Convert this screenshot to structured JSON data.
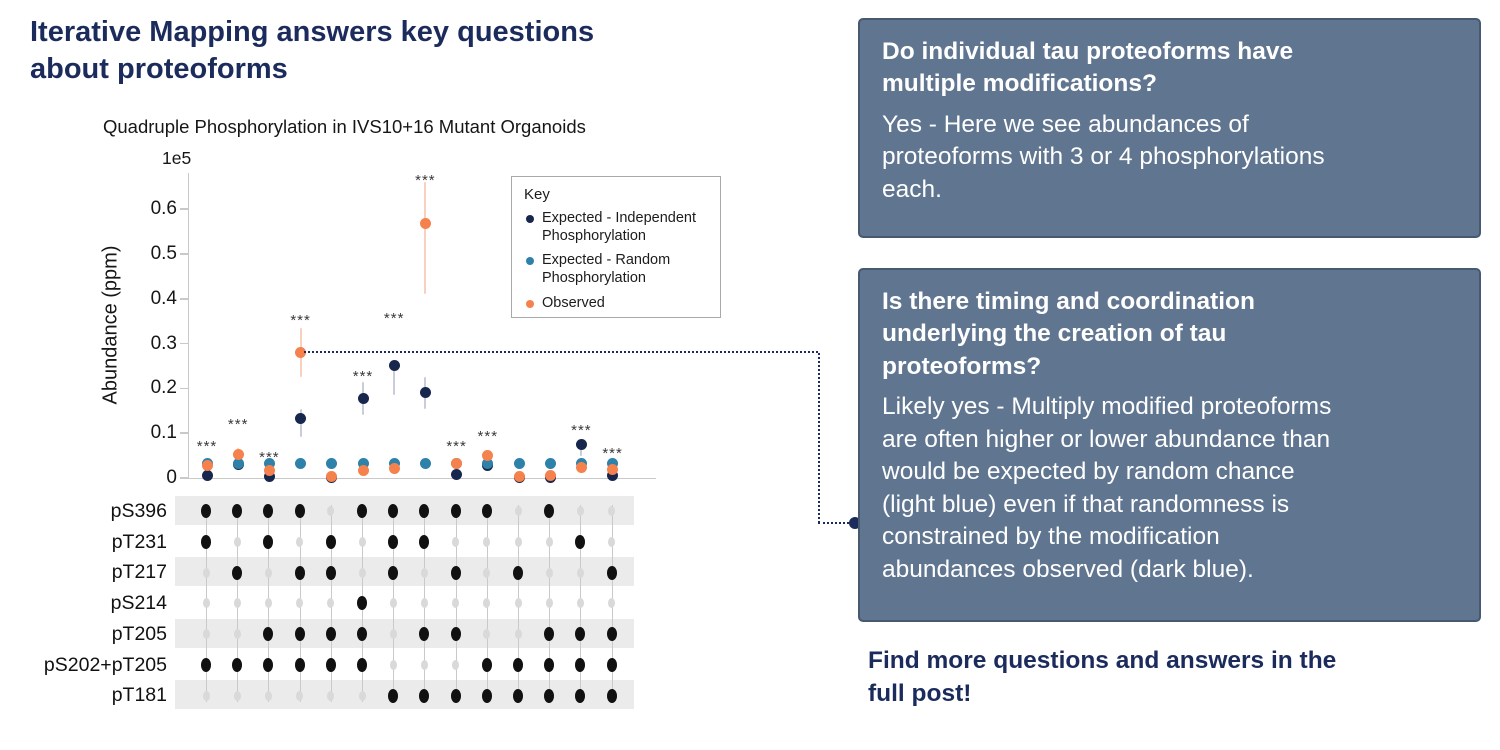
{
  "title": "Iterative Mapping answers key questions\nabout proteoforms",
  "chart_data": {
    "type": "scatter",
    "title": "Quadruple Phosphorylation in IVS10+16 Mutant Organoids",
    "xlabel": "",
    "ylabel": "Abundance (ppm)",
    "y_multiplier": "1e5",
    "ylim": [
      0,
      0.68
    ],
    "yticks": [
      "0",
      "0.1",
      "0.2",
      "0.3",
      "0.4",
      "0.5",
      "0.6"
    ],
    "grid": false,
    "legend": {
      "title": "Key",
      "position": "upper right",
      "entries": [
        {
          "label": "Expected - Independent\nPhosphorylation",
          "color": "#17264d"
        },
        {
          "label": "Expected - Random\nPhosphorylation",
          "color": "#2e81a8"
        },
        {
          "label": "Observed",
          "color": "#f5814d"
        }
      ]
    },
    "series": [
      {
        "name": "Expected - Independent Phosphorylation",
        "color": "#17264d",
        "error_color": "#c8cdd9",
        "values": [
          0.005,
          0.031,
          0.004,
          0.132,
          0.002,
          0.177,
          0.251,
          0.19,
          0.008,
          0.028,
          0.001,
          0.002,
          0.075,
          0.006
        ],
        "errors": [
          null,
          [
            0.018,
            0.045
          ],
          null,
          [
            0.092,
            0.155
          ],
          null,
          [
            0.14,
            0.215
          ],
          [
            0.185,
            0.255
          ],
          [
            0.155,
            0.225
          ],
          null,
          [
            0.015,
            0.042
          ],
          null,
          null,
          [
            0.05,
            0.082
          ],
          null
        ]
      },
      {
        "name": "Expected - Random Phosphorylation",
        "color": "#2e81a8",
        "error_color": "#bcd6e2",
        "values": [
          0.033,
          0.033,
          0.032,
          0.033,
          0.033,
          0.033,
          0.033,
          0.033,
          0.033,
          0.033,
          0.033,
          0.033,
          0.033,
          0.033
        ],
        "errors": [
          null,
          null,
          null,
          null,
          null,
          null,
          null,
          null,
          null,
          null,
          null,
          null,
          null,
          null
        ]
      },
      {
        "name": "Observed",
        "color": "#f5814d",
        "error_color": "#f9cfbd",
        "values": [
          0.027,
          0.053,
          0.016,
          0.281,
          0.003,
          0.016,
          0.021,
          0.568,
          0.032,
          0.05,
          0.004,
          0.006,
          0.024,
          0.018
        ],
        "errors": [
          [
            0.018,
            0.038
          ],
          [
            0.04,
            0.066
          ],
          [
            0.008,
            0.025
          ],
          [
            0.225,
            0.335
          ],
          null,
          null,
          null,
          [
            0.41,
            0.66
          ],
          [
            0.022,
            0.043
          ],
          [
            0.038,
            0.063
          ],
          null,
          null,
          [
            0.014,
            0.035
          ],
          null
        ]
      }
    ],
    "significance": [
      {
        "column": 1,
        "label": "***",
        "y": 0.067
      },
      {
        "column": 2,
        "label": "***",
        "y": 0.115
      },
      {
        "column": 3,
        "label": "***",
        "y": 0.042
      },
      {
        "column": 4,
        "label": "***",
        "y": 0.348
      },
      {
        "column": 6,
        "label": "***",
        "y": 0.224
      },
      {
        "column": 7,
        "label": "***",
        "y": 0.353
      },
      {
        "column": 8,
        "label": "***",
        "y": 0.66
      },
      {
        "column": 9,
        "label": "***",
        "y": 0.067
      },
      {
        "column": 10,
        "label": "***",
        "y": 0.09
      },
      {
        "column": 13,
        "label": "***",
        "y": 0.103
      },
      {
        "column": 14,
        "label": "***",
        "y": 0.051
      }
    ],
    "matrix": {
      "rows": [
        "pS396",
        "pT231",
        "pT217",
        "pS214",
        "pT205",
        "pS202+pT205",
        "pT181"
      ],
      "filled": [
        [
          1,
          1,
          0,
          0,
          0,
          1,
          0
        ],
        [
          1,
          0,
          1,
          0,
          0,
          1,
          0
        ],
        [
          1,
          1,
          0,
          0,
          1,
          1,
          0
        ],
        [
          1,
          0,
          1,
          0,
          1,
          1,
          0
        ],
        [
          0,
          1,
          1,
          0,
          1,
          1,
          0
        ],
        [
          1,
          0,
          0,
          1,
          1,
          1,
          0
        ],
        [
          1,
          1,
          1,
          0,
          0,
          0,
          1
        ],
        [
          1,
          1,
          0,
          0,
          1,
          0,
          1
        ],
        [
          1,
          0,
          1,
          0,
          1,
          0,
          1
        ],
        [
          1,
          0,
          0,
          0,
          0,
          1,
          1
        ],
        [
          0,
          0,
          1,
          0,
          0,
          1,
          1
        ],
        [
          1,
          0,
          0,
          0,
          1,
          1,
          1
        ],
        [
          0,
          1,
          0,
          0,
          1,
          1,
          1
        ],
        [
          0,
          0,
          1,
          0,
          1,
          1,
          1
        ]
      ]
    },
    "connector": {
      "column": 4,
      "value": 0.281
    }
  },
  "qa_boxes": [
    {
      "heading": "Do individual tau proteoforms have\nmultiple modifications?",
      "body": "Yes - Here we see abundances of\nproteoforms with 3 or 4 phosphorylations\neach."
    },
    {
      "heading": "Is there timing and coordination\nunderlying the creation of tau\nproteoforms?",
      "body": "Likely yes - Multiply modified proteoforms\nare often higher or lower abundance than\nwould be expected by random chance\n(light blue) even if that randomness is\nconstrained by the modification\nabundances observed (dark blue)."
    }
  ],
  "footer": "Find more questions and answers in the\nfull post!",
  "colors": {
    "title_navy": "#1b2b5c",
    "box_slate": "#5f7590",
    "box_border": "#46596f",
    "navy_series": "#17264d",
    "teal_series": "#2e81a8",
    "orange_series": "#f5814d",
    "stripe_gray": "#ebebeb",
    "empty_dot": "#d9d9d9"
  }
}
